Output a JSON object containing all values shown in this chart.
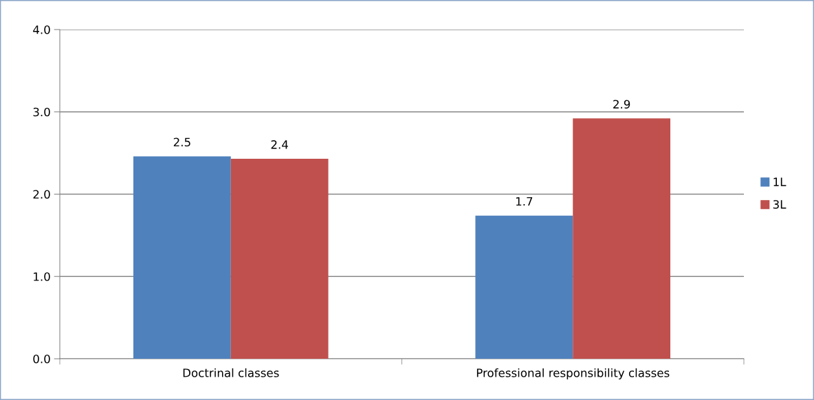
{
  "chart_data": {
    "type": "bar",
    "categories": [
      "Doctrinal classes",
      "Professional responsibility classes"
    ],
    "series": [
      {
        "name": "1L",
        "color": "#4f81bd",
        "values": [
          2.46,
          1.74
        ],
        "value_labels": [
          "2.5",
          "1.7"
        ]
      },
      {
        "name": "3L",
        "color": "#c0504d",
        "values": [
          2.43,
          2.92
        ],
        "value_labels": [
          "2.4",
          "2.9"
        ]
      }
    ],
    "ylim": [
      0,
      4
    ],
    "yticks": [
      {
        "value": 0,
        "label": "0.0"
      },
      {
        "value": 1,
        "label": "1.0"
      },
      {
        "value": 2,
        "label": "2.0"
      },
      {
        "value": 3,
        "label": "3.0"
      },
      {
        "value": 4,
        "label": "4.0"
      }
    ],
    "grid": "y",
    "legend": "right"
  }
}
